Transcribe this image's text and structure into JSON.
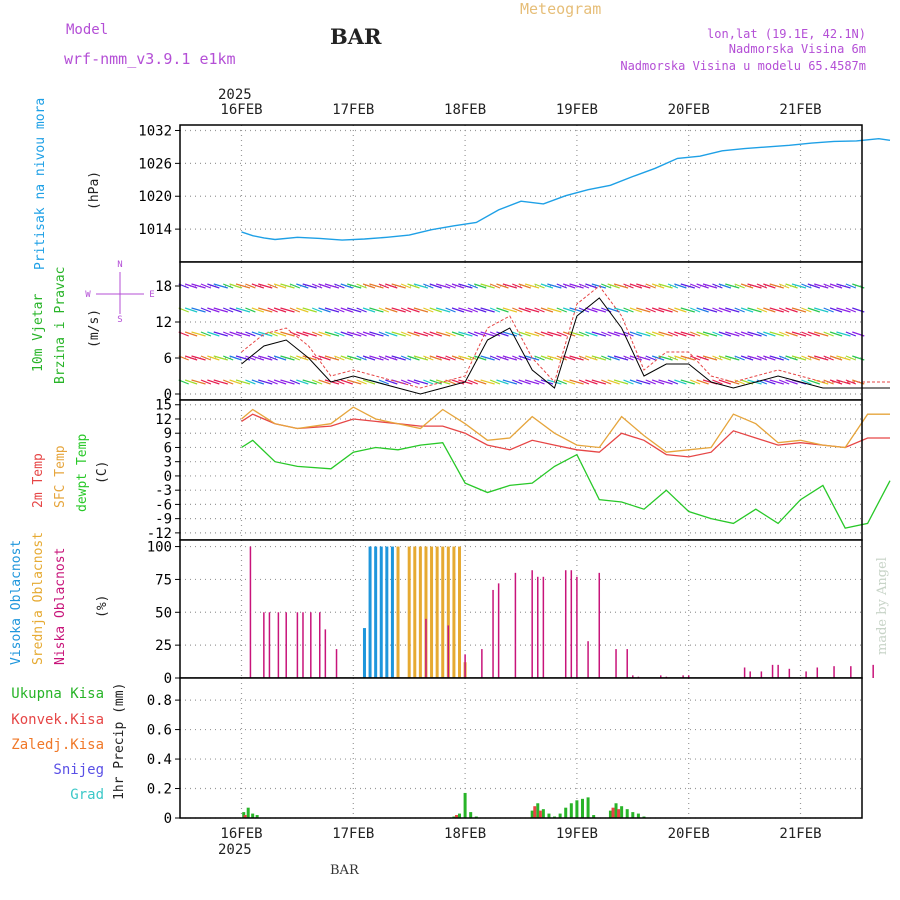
{
  "header": {
    "model_label": "Model",
    "model_name": "wrf-nmm_v3.9.1 e1km",
    "station": "BAR",
    "title": "Meteogram",
    "location": "lon,lat (19.1E, 42.1N)",
    "elevation": "Nadmorska Visina 6m",
    "model_elevation": "Nadmorska Visina u modelu 65.4587m",
    "watermark": "made by Angel",
    "footer_station": "BAR"
  },
  "colors": {
    "pressure": "#1ea0e6",
    "temp2m": "#e64646",
    "sfctemp": "#e6a53c",
    "dewpt": "#28c828",
    "high_cloud": "#1e96dc",
    "mid_cloud": "#e6aa32",
    "low_cloud": "#c8147a",
    "total_precip": "#28b428",
    "convective_precip": "#e64646",
    "frozen_precip": "#f07828",
    "snow": "#5a50e6",
    "hail": "#3cc8c8",
    "model_text": "#b44fd6",
    "wind_label_green": "#28b428",
    "gust": "#e64646",
    "wind_line": "#000000"
  },
  "time_axis": {
    "year": "2025",
    "dates": [
      "16FEB",
      "17FEB",
      "18FEB",
      "19FEB",
      "20FEB",
      "21FEB"
    ]
  },
  "chart_data": [
    {
      "type": "line",
      "name": "pressure",
      "ylabel_primary": "Pritisak na nivou mora",
      "unit": "(hPa)",
      "ylim": [
        1008,
        1033
      ],
      "yticks": [
        1014,
        1020,
        1026,
        1032
      ],
      "grid": true,
      "series": [
        {
          "name": "Pritisak na nivou mora",
          "x": [
            0,
            0.1,
            0.2,
            0.3,
            0.5,
            0.7,
            0.9,
            1.1,
            1.3,
            1.5,
            1.7,
            1.9,
            2.1,
            2.3,
            2.5,
            2.7,
            2.9,
            3.1,
            3.3,
            3.5,
            3.7,
            3.9,
            4.1,
            4.3,
            4.5,
            4.7,
            4.9,
            5.1,
            5.3,
            5.5,
            5.7,
            5.8
          ],
          "y": [
            1013.5,
            1012.8,
            1012.4,
            1012.1,
            1012.5,
            1012.3,
            1012.0,
            1012.2,
            1012.5,
            1012.9,
            1013.9,
            1014.6,
            1015.2,
            1017.5,
            1019.1,
            1018.6,
            1020.1,
            1021.2,
            1022.0,
            1023.6,
            1025.1,
            1026.9,
            1027.3,
            1028.3,
            1028.7,
            1029.0,
            1029.3,
            1029.7,
            1030.0,
            1030.1,
            1030.5,
            1030.2
          ]
        }
      ]
    },
    {
      "type": "line",
      "name": "wind",
      "ylabel_primary": "10m Vjetar",
      "ylabel_secondary": "Brzina i Pravac",
      "unit": "(m/s)",
      "compass": {
        "n": "N",
        "s": "S",
        "e": "E",
        "w": "W"
      },
      "ylim": [
        -1,
        22
      ],
      "yticks": [
        0,
        6,
        12,
        18
      ],
      "grid": true,
      "series": [
        {
          "name": "wind speed",
          "x": [
            0,
            0.2,
            0.4,
            0.6,
            0.8,
            1.0,
            1.2,
            1.4,
            1.6,
            1.8,
            2.0,
            2.2,
            2.4,
            2.6,
            2.8,
            3.0,
            3.2,
            3.4,
            3.6,
            3.8,
            4.0,
            4.2,
            4.4,
            4.6,
            4.8,
            5.0,
            5.2,
            5.4,
            5.6,
            5.8
          ],
          "y": [
            5,
            8,
            9,
            6,
            2,
            3,
            2,
            1,
            0,
            1,
            2,
            9,
            11,
            4,
            1,
            13,
            16,
            11,
            3,
            5,
            5,
            2,
            1,
            2,
            3,
            2,
            1,
            1,
            1,
            1
          ]
        },
        {
          "name": "gust",
          "x": [
            0,
            0.2,
            0.4,
            0.6,
            0.8,
            1.0,
            1.2,
            1.4,
            1.6,
            1.8,
            2.0,
            2.2,
            2.4,
            2.6,
            2.8,
            3.0,
            3.2,
            3.4,
            3.6,
            3.8,
            4.0,
            4.2,
            4.4,
            4.6,
            4.8,
            5.0,
            5.2,
            5.4,
            5.6,
            5.8
          ],
          "y": [
            7,
            10,
            11,
            8,
            3,
            4,
            3,
            2,
            1,
            2,
            3,
            11,
            13,
            6,
            2,
            15,
            18,
            13,
            4,
            7,
            7,
            3,
            2,
            3,
            4,
            3,
            2,
            2,
            2,
            2
          ]
        }
      ]
    },
    {
      "type": "line",
      "name": "temperature",
      "ylabels": [
        "2m Temp",
        "SFC Temp",
        "dewpt Temp"
      ],
      "unit": "(C)",
      "ylim": [
        -13.5,
        16
      ],
      "yticks": [
        -12,
        -9,
        -6,
        -3,
        0,
        3,
        6,
        9,
        12,
        15
      ],
      "grid": true,
      "series": [
        {
          "name": "2m Temp",
          "x": [
            0,
            0.1,
            0.3,
            0.5,
            0.8,
            1.0,
            1.2,
            1.4,
            1.6,
            1.8,
            2.0,
            2.2,
            2.4,
            2.6,
            2.8,
            3.0,
            3.2,
            3.4,
            3.6,
            3.8,
            4.0,
            4.2,
            4.4,
            4.6,
            4.8,
            5.0,
            5.2,
            5.4,
            5.6,
            5.8
          ],
          "y": [
            11.5,
            13.0,
            11.0,
            10.0,
            10.5,
            12.0,
            11.5,
            11.0,
            10.5,
            10.5,
            9.0,
            6.5,
            5.5,
            7.5,
            6.5,
            5.5,
            5.0,
            9.0,
            7.5,
            4.5,
            4.0,
            5.0,
            9.5,
            8.0,
            6.5,
            7.0,
            6.5,
            6.0,
            8.0,
            8.0
          ]
        },
        {
          "name": "SFC Temp",
          "x": [
            0,
            0.1,
            0.3,
            0.5,
            0.8,
            1.0,
            1.2,
            1.4,
            1.6,
            1.8,
            2.0,
            2.2,
            2.4,
            2.6,
            2.8,
            3.0,
            3.2,
            3.4,
            3.6,
            3.8,
            4.0,
            4.2,
            4.4,
            4.6,
            4.8,
            5.0,
            5.2,
            5.4,
            5.6,
            5.8
          ],
          "y": [
            12.0,
            14.0,
            11.0,
            10.0,
            11.0,
            14.5,
            12.0,
            11.0,
            10.0,
            14.0,
            11.0,
            7.5,
            8.0,
            12.5,
            9.0,
            6.5,
            6.0,
            12.5,
            8.5,
            5.0,
            5.5,
            6.0,
            13.0,
            11.0,
            7.0,
            7.5,
            6.5,
            6.0,
            13.0,
            13.0
          ]
        },
        {
          "name": "dewpt Temp",
          "x": [
            0,
            0.1,
            0.3,
            0.5,
            0.8,
            1.0,
            1.2,
            1.4,
            1.6,
            1.8,
            2.0,
            2.2,
            2.4,
            2.6,
            2.8,
            3.0,
            3.2,
            3.4,
            3.6,
            3.8,
            4.0,
            4.2,
            4.4,
            4.6,
            4.8,
            5.0,
            5.2,
            5.4,
            5.6,
            5.8
          ],
          "y": [
            6.0,
            7.5,
            3.0,
            2.0,
            1.5,
            5.0,
            6.0,
            5.5,
            6.5,
            7.0,
            -1.5,
            -3.5,
            -2.0,
            -1.5,
            2.0,
            4.5,
            -5.0,
            -5.5,
            -7.0,
            -3.0,
            -7.5,
            -9.0,
            -10.0,
            -7.0,
            -10.0,
            -5.0,
            -2.0,
            -11.0,
            -10.0,
            -1.0
          ]
        }
      ]
    },
    {
      "type": "bar",
      "name": "cloud",
      "ylabels": [
        "Visoka Oblacnost",
        "Srednja Oblacnost",
        "Niska Oblacnost"
      ],
      "unit": "(%)",
      "ylim": [
        0,
        105
      ],
      "yticks": [
        0,
        25,
        50,
        75,
        100
      ],
      "grid": true,
      "series": [
        {
          "name": "Visoka Oblacnost",
          "x": [
            1.1,
            1.15,
            1.2,
            1.25,
            1.3,
            1.35
          ],
          "values": [
            38,
            100,
            100,
            100,
            100,
            100
          ]
        },
        {
          "name": "Srednja Oblacnost",
          "x": [
            1.4,
            1.5,
            1.55,
            1.6,
            1.65,
            1.7,
            1.75,
            1.8,
            1.85,
            1.9,
            1.95,
            2.0
          ],
          "values": [
            100,
            100,
            100,
            100,
            100,
            100,
            100,
            100,
            100,
            100,
            100,
            12
          ]
        },
        {
          "name": "Niska Oblacnost",
          "x": [
            0.08,
            0.2,
            0.25,
            0.33,
            0.4,
            0.5,
            0.55,
            0.62,
            0.7,
            0.75,
            0.85,
            1.65,
            1.85,
            2.0,
            2.15,
            2.25,
            2.3,
            2.45,
            2.6,
            2.65,
            2.7,
            2.9,
            2.95,
            3.0,
            3.1,
            3.2,
            3.35,
            3.45,
            3.5,
            3.55,
            3.75,
            3.8,
            3.95,
            4.0,
            4.5,
            4.55,
            4.65,
            4.75,
            4.8,
            4.9,
            5.05,
            5.15,
            5.3,
            5.45,
            5.65
          ],
          "values": [
            100,
            50,
            50,
            50,
            50,
            50,
            50,
            50,
            50,
            37,
            22,
            45,
            40,
            18,
            22,
            67,
            72,
            80,
            82,
            77,
            77,
            82,
            82,
            77,
            28,
            80,
            22,
            22,
            2,
            1,
            2,
            1,
            2,
            2,
            8,
            5,
            5,
            10,
            10,
            7,
            5,
            8,
            9,
            9,
            10
          ]
        }
      ]
    },
    {
      "type": "bar",
      "name": "precipitation",
      "ylabels": [
        "Ukupna Kisa",
        "Konvek.Kisa",
        "Zaledj.Kisa",
        "Snijeg",
        "Grad"
      ],
      "ylabel_axis": "1hr Precip (mm)",
      "ylim": [
        0,
        0.95
      ],
      "yticks": [
        0,
        0.2,
        0.4,
        0.6,
        0.8
      ],
      "grid": true,
      "series": [
        {
          "name": "Ukupna Kisa",
          "x": [
            0.02,
            0.06,
            0.1,
            0.14,
            1.9,
            1.95,
            2.0,
            2.05,
            2.1,
            2.6,
            2.65,
            2.7,
            2.75,
            2.8,
            2.85,
            2.9,
            2.95,
            3.0,
            3.05,
            3.1,
            3.15,
            3.3,
            3.35,
            3.4,
            3.45,
            3.5,
            3.55,
            3.6
          ],
          "values": [
            0.04,
            0.07,
            0.03,
            0.02,
            0.01,
            0.03,
            0.17,
            0.04,
            0.01,
            0.05,
            0.1,
            0.06,
            0.03,
            0.01,
            0.03,
            0.07,
            0.1,
            0.12,
            0.13,
            0.14,
            0.02,
            0.05,
            0.1,
            0.08,
            0.06,
            0.04,
            0.03,
            0.01
          ]
        },
        {
          "name": "Konvek.Kisa",
          "x": [
            0.06,
            1.95,
            2.65,
            2.7,
            3.35,
            3.4
          ],
          "values": [
            0.02,
            0.02,
            0.08,
            0.05,
            0.07,
            0.06
          ]
        }
      ]
    }
  ]
}
